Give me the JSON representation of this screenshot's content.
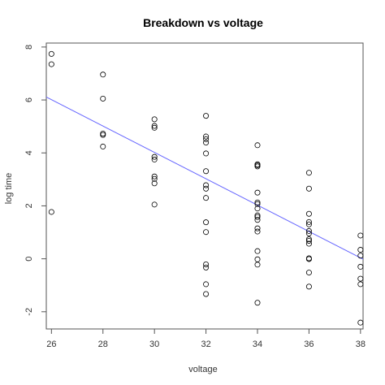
{
  "chart_data": {
    "type": "scatter",
    "title": "Breakdown vs voltage",
    "xlabel": "voltage",
    "ylabel": "log time",
    "xlim": [
      25.8,
      38.1
    ],
    "ylim": [
      -2.65,
      8.15
    ],
    "xticks": [
      26,
      28,
      30,
      32,
      34,
      36,
      38
    ],
    "yticks": [
      -2,
      0,
      2,
      4,
      6,
      8
    ],
    "grid": false,
    "legend": "none",
    "colors": {
      "points": "#000000",
      "fit_line": "#6666ff",
      "frame": "#555555"
    },
    "points": [
      {
        "x": 26,
        "y": 7.74
      },
      {
        "x": 26,
        "y": 7.35
      },
      {
        "x": 26,
        "y": 1.77
      },
      {
        "x": 28,
        "y": 6.96
      },
      {
        "x": 28,
        "y": 6.05
      },
      {
        "x": 28,
        "y": 4.73
      },
      {
        "x": 28,
        "y": 4.68
      },
      {
        "x": 28,
        "y": 4.24
      },
      {
        "x": 30,
        "y": 5.27
      },
      {
        "x": 30,
        "y": 5.02
      },
      {
        "x": 30,
        "y": 4.95
      },
      {
        "x": 30,
        "y": 3.85
      },
      {
        "x": 30,
        "y": 3.75
      },
      {
        "x": 30,
        "y": 3.11
      },
      {
        "x": 30,
        "y": 3.02
      },
      {
        "x": 30,
        "y": 2.85
      },
      {
        "x": 30,
        "y": 2.05
      },
      {
        "x": 32,
        "y": 5.4
      },
      {
        "x": 32,
        "y": 4.62
      },
      {
        "x": 32,
        "y": 4.52
      },
      {
        "x": 32,
        "y": 4.39
      },
      {
        "x": 32,
        "y": 3.98
      },
      {
        "x": 32,
        "y": 3.31
      },
      {
        "x": 32,
        "y": 2.78
      },
      {
        "x": 32,
        "y": 2.65
      },
      {
        "x": 32,
        "y": 2.3
      },
      {
        "x": 32,
        "y": 1.38
      },
      {
        "x": 32,
        "y": 1.01
      },
      {
        "x": 32,
        "y": -0.21
      },
      {
        "x": 32,
        "y": -0.33
      },
      {
        "x": 32,
        "y": -0.96
      },
      {
        "x": 32,
        "y": -1.33
      },
      {
        "x": 34,
        "y": 4.29
      },
      {
        "x": 34,
        "y": 3.57
      },
      {
        "x": 34,
        "y": 3.53
      },
      {
        "x": 34,
        "y": 3.49
      },
      {
        "x": 34,
        "y": 2.5
      },
      {
        "x": 34,
        "y": 2.13
      },
      {
        "x": 34,
        "y": 2.07
      },
      {
        "x": 34,
        "y": 1.9
      },
      {
        "x": 34,
        "y": 1.64
      },
      {
        "x": 34,
        "y": 1.58
      },
      {
        "x": 34,
        "y": 1.47
      },
      {
        "x": 34,
        "y": 1.15
      },
      {
        "x": 34,
        "y": 1.03
      },
      {
        "x": 34,
        "y": 0.29
      },
      {
        "x": 34,
        "y": -0.02
      },
      {
        "x": 34,
        "y": -0.22
      },
      {
        "x": 34,
        "y": -1.66
      },
      {
        "x": 36,
        "y": 3.25
      },
      {
        "x": 36,
        "y": 2.65
      },
      {
        "x": 36,
        "y": 1.7
      },
      {
        "x": 36,
        "y": 1.39
      },
      {
        "x": 36,
        "y": 1.3
      },
      {
        "x": 36,
        "y": 1.05
      },
      {
        "x": 36,
        "y": 0.96
      },
      {
        "x": 36,
        "y": 0.74
      },
      {
        "x": 36,
        "y": 0.68
      },
      {
        "x": 36,
        "y": 0.57
      },
      {
        "x": 36,
        "y": 0.02
      },
      {
        "x": 36,
        "y": -0.01
      },
      {
        "x": 36,
        "y": -0.52
      },
      {
        "x": 36,
        "y": -1.05
      },
      {
        "x": 38,
        "y": 0.88
      },
      {
        "x": 38,
        "y": 0.34
      },
      {
        "x": 38,
        "y": 0.12
      },
      {
        "x": 38,
        "y": -0.3
      },
      {
        "x": 38,
        "y": -0.75
      },
      {
        "x": 38,
        "y": -0.96
      },
      {
        "x": 38,
        "y": -2.41
      }
    ],
    "fit_line": {
      "intercept": 18.96,
      "slope": -0.498
    }
  }
}
